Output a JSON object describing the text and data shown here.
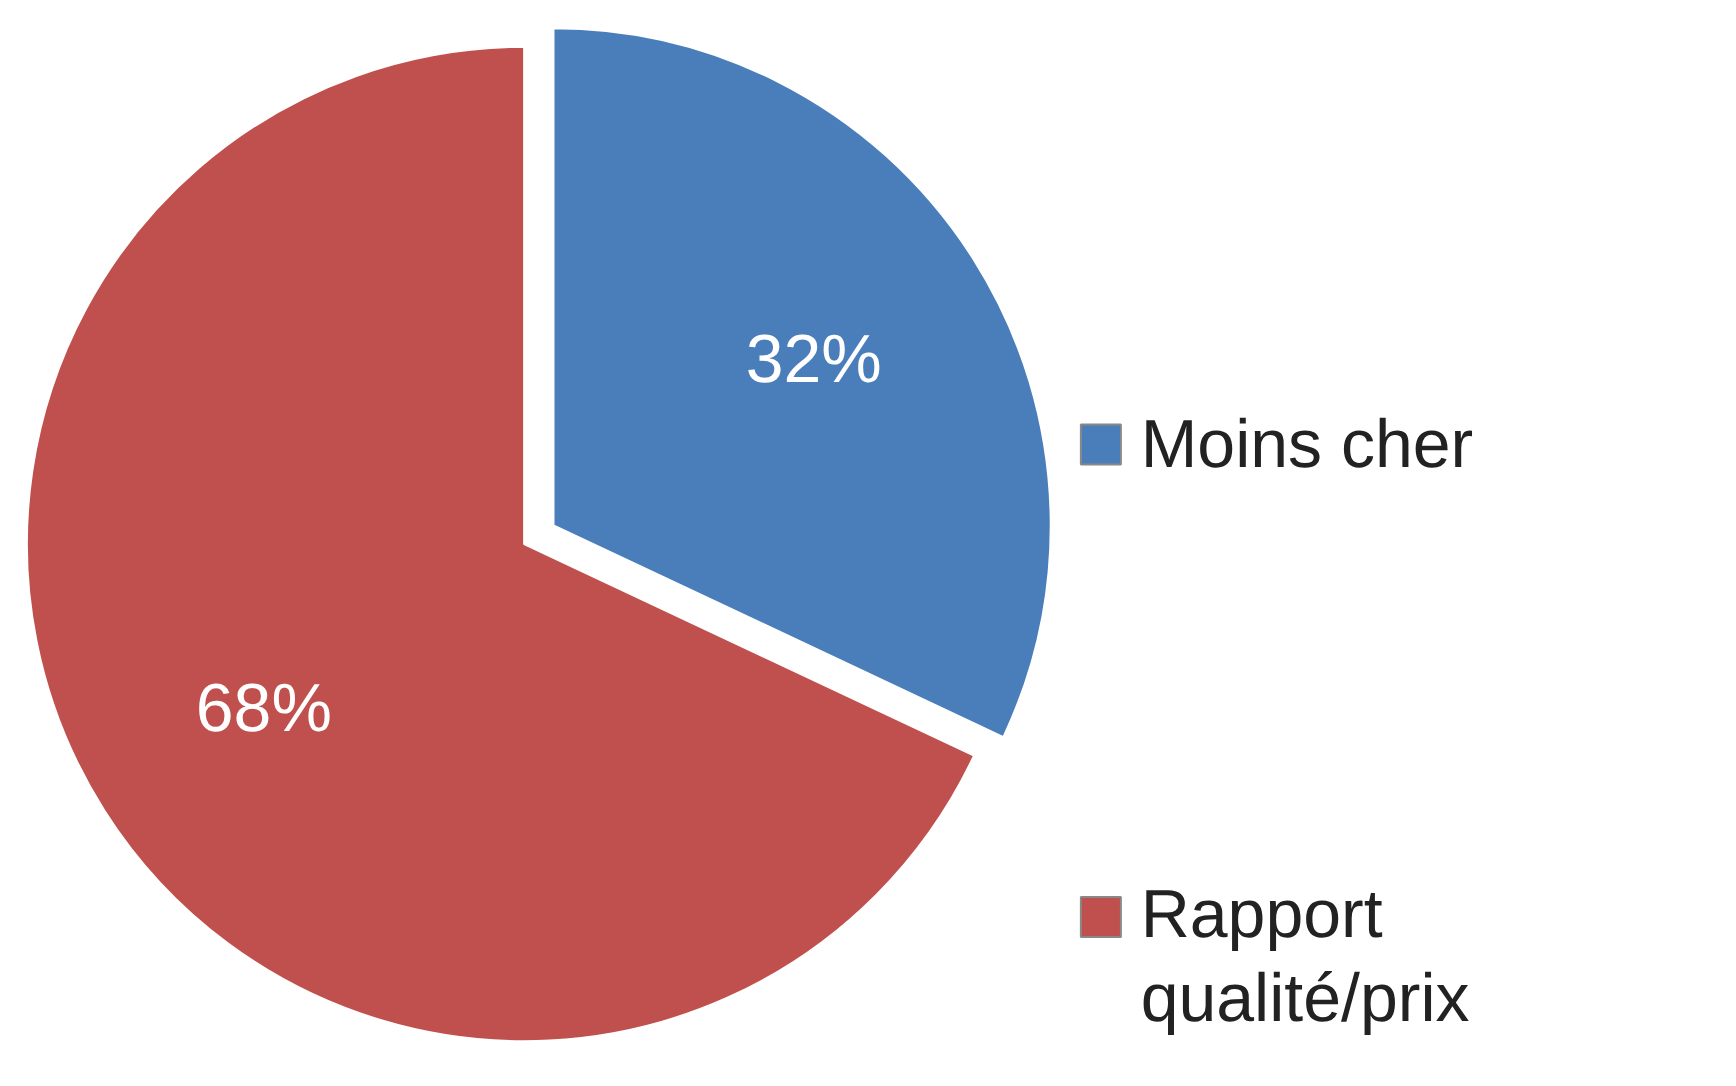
{
  "chart_data": {
    "type": "pie",
    "categories": [
      "Moins cher",
      "Rapport qualité/prix"
    ],
    "values": [
      32,
      68
    ],
    "colors": [
      "#4a7ebb",
      "#c0504d"
    ],
    "value_labels": [
      "32%",
      "68%"
    ],
    "legend": "right"
  }
}
